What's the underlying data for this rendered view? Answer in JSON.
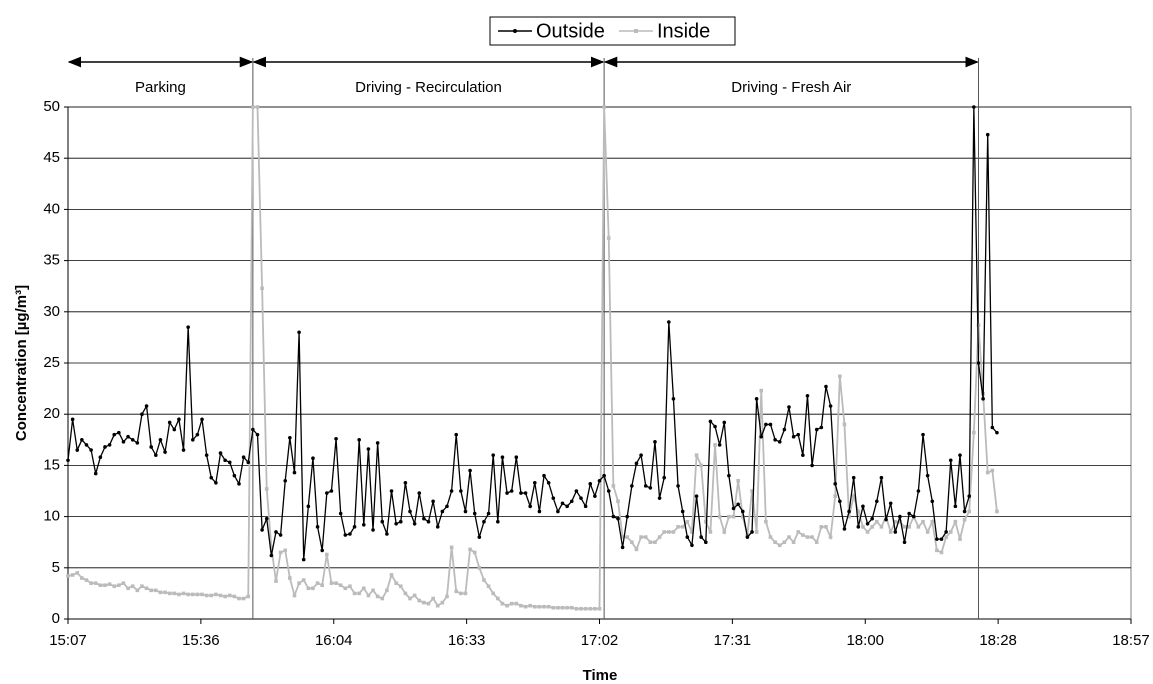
{
  "chart_data": {
    "type": "line",
    "legend": "top",
    "x_label": "Time",
    "y_label": "Concentration [µg/m³]",
    "xlim": [
      907,
      1137
    ],
    "xticks": [
      {
        "value": 907,
        "label": "15:07"
      },
      {
        "value": 935.75,
        "label": "15:36"
      },
      {
        "value": 964.5,
        "label": "16:04"
      },
      {
        "value": 993.25,
        "label": "16:33"
      },
      {
        "value": 1022,
        "label": "17:02"
      },
      {
        "value": 1050.75,
        "label": "17:31"
      },
      {
        "value": 1079.5,
        "label": "18:00"
      },
      {
        "value": 1108.25,
        "label": "18:28"
      },
      {
        "value": 1137,
        "label": "18:57"
      }
    ],
    "ylim": [
      0,
      50
    ],
    "yticks": [
      0,
      5,
      10,
      15,
      20,
      25,
      30,
      35,
      40,
      45,
      50
    ],
    "grid": true,
    "phases": [
      {
        "label": "Parking",
        "start": 907,
        "end": 947
      },
      {
        "label": "Driving - Recirculation",
        "start": 947,
        "end": 1023
      },
      {
        "label": "Driving - Fresh Air",
        "start": 1023,
        "end": 1104
      }
    ],
    "x": [
      907,
      908,
      909,
      910,
      911,
      912,
      913,
      914,
      915,
      916,
      917,
      918,
      919,
      920,
      921,
      922,
      923,
      924,
      925,
      926,
      927,
      928,
      929,
      930,
      931,
      932,
      933,
      934,
      935,
      936,
      937,
      938,
      939,
      940,
      941,
      942,
      943,
      944,
      945,
      946,
      947,
      948,
      949,
      950,
      951,
      952,
      953,
      954,
      955,
      956,
      957,
      958,
      959,
      960,
      961,
      962,
      963,
      964,
      965,
      966,
      967,
      968,
      969,
      970,
      971,
      972,
      973,
      974,
      975,
      976,
      977,
      978,
      979,
      980,
      981,
      982,
      983,
      984,
      985,
      986,
      987,
      988,
      989,
      990,
      991,
      992,
      993,
      994,
      995,
      996,
      997,
      998,
      999,
      1000,
      1001,
      1002,
      1003,
      1004,
      1005,
      1006,
      1007,
      1008,
      1009,
      1010,
      1011,
      1012,
      1013,
      1014,
      1015,
      1016,
      1017,
      1018,
      1019,
      1020,
      1021,
      1022,
      1023,
      1024,
      1025,
      1026,
      1027,
      1028,
      1029,
      1030,
      1031,
      1032,
      1033,
      1034,
      1035,
      1036,
      1037,
      1038,
      1039,
      1040,
      1041,
      1042,
      1043,
      1044,
      1045,
      1046,
      1047,
      1048,
      1049,
      1050,
      1051,
      1052,
      1053,
      1054,
      1055,
      1056,
      1057,
      1058,
      1059,
      1060,
      1061,
      1062,
      1063,
      1064,
      1065,
      1066,
      1067,
      1068,
      1069,
      1070,
      1071,
      1072,
      1073,
      1074,
      1075,
      1076,
      1077,
      1078,
      1079,
      1080,
      1081,
      1082,
      1083,
      1084,
      1085,
      1086,
      1087,
      1088,
      1089,
      1090,
      1091,
      1092,
      1093,
      1094,
      1095,
      1096,
      1097,
      1098,
      1099,
      1100,
      1101,
      1102,
      1103,
      1104,
      1105,
      1106,
      1107,
      1108
    ],
    "series": [
      {
        "name": "Outside",
        "color": "#000000",
        "marker": "circle",
        "values": [
          15.5,
          19.5,
          16.5,
          17.5,
          17,
          16.5,
          14.2,
          15.8,
          16.8,
          17,
          18,
          18.2,
          17.3,
          17.8,
          17.5,
          17.2,
          20,
          20.8,
          16.8,
          16,
          17.5,
          16.3,
          19.2,
          18.5,
          19.5,
          16.5,
          28.5,
          17.5,
          18,
          19.5,
          16,
          13.8,
          13.3,
          16.2,
          15.5,
          15.3,
          14,
          13.2,
          15.8,
          15.3,
          18.5,
          18,
          8.7,
          9.8,
          6.2,
          8.5,
          8.2,
          13.5,
          17.7,
          14.3,
          28,
          5.8,
          11,
          15.7,
          9,
          6.7,
          12.3,
          12.5,
          17.6,
          10.3,
          8.2,
          8.3,
          9,
          17.5,
          9.2,
          16.6,
          8.7,
          17.2,
          9.5,
          8.3,
          12.5,
          9.3,
          9.5,
          13.3,
          10.5,
          9.3,
          12.3,
          9.8,
          9.5,
          11.5,
          9,
          10.5,
          11,
          12.5,
          18,
          12.5,
          10.5,
          14.5,
          10.3,
          8,
          9.5,
          10.3,
          16,
          9.5,
          15.8,
          12.3,
          12.5,
          15.8,
          12.3,
          12.3,
          11,
          13.3,
          10.5,
          14,
          13.3,
          11.8,
          10.5,
          11.3,
          11,
          11.5,
          12.5,
          11.8,
          11,
          13.2,
          12,
          13.5,
          14,
          12.5,
          10,
          9.8,
          7,
          10,
          13,
          15.2,
          16,
          13,
          12.8,
          17.3,
          11.8,
          13.8,
          29,
          21.5,
          13,
          10.5,
          8,
          7.2,
          12,
          8,
          7.5,
          19.3,
          18.8,
          17,
          19.2,
          14,
          10.8,
          11.2,
          10.5,
          8,
          8.5,
          21.5,
          17.8,
          19,
          19,
          17.5,
          17.3,
          18.5,
          20.7,
          17.8,
          18,
          16,
          21.8,
          15,
          18.5,
          18.7,
          22.7,
          20.8,
          13.2,
          11.5,
          8.8,
          10.5,
          13.8,
          9,
          11,
          9.3,
          9.8,
          11.5,
          13.8,
          9.7,
          11.3,
          8.5,
          10,
          7.5,
          10.3,
          10,
          12.5,
          18,
          14,
          11.5,
          7.8,
          7.8,
          8.5,
          15.5,
          11,
          16,
          10.5,
          12,
          50,
          25,
          21.5,
          47.3,
          18.7,
          18.2
        ]
      },
      {
        "name": "Inside",
        "color": "#bbbbbb",
        "marker": "square",
        "values": [
          4.2,
          4.3,
          4.5,
          4,
          3.8,
          3.5,
          3.5,
          3.3,
          3.3,
          3.4,
          3.2,
          3.3,
          3.5,
          3,
          3.2,
          2.8,
          3.2,
          3,
          2.8,
          2.8,
          2.6,
          2.6,
          2.5,
          2.5,
          2.4,
          2.5,
          2.4,
          2.4,
          2.4,
          2.4,
          2.3,
          2.3,
          2.4,
          2.3,
          2.2,
          2.3,
          2.2,
          2,
          2,
          2.2,
          50,
          50,
          32.3,
          12.7,
          7,
          3.7,
          6.5,
          6.7,
          4,
          2.3,
          3.5,
          3.8,
          3,
          3,
          3.5,
          3.3,
          6.3,
          3.5,
          3.5,
          3.3,
          3,
          3.2,
          2.5,
          2.5,
          3,
          2.3,
          2.8,
          2.2,
          2,
          2.8,
          4.3,
          3.5,
          3.2,
          2.5,
          2,
          2.3,
          1.8,
          1.6,
          1.5,
          2,
          1.3,
          1.6,
          2.2,
          7,
          2.7,
          2.5,
          2.5,
          6.8,
          6.5,
          5,
          3.8,
          3.2,
          2.5,
          2,
          1.5,
          1.3,
          1.5,
          1.5,
          1.3,
          1.2,
          1.3,
          1.2,
          1.2,
          1.2,
          1.2,
          1.1,
          1.1,
          1.1,
          1.1,
          1.1,
          1,
          1,
          1,
          1,
          1,
          1,
          50,
          37.2,
          13,
          11.5,
          8,
          8,
          7.5,
          6.8,
          8,
          8,
          7.5,
          7.5,
          8,
          8.5,
          8.5,
          8.5,
          9,
          9,
          9.5,
          8.5,
          16,
          15,
          9.5,
          8.5,
          17,
          10,
          8.5,
          10,
          10,
          13.5,
          10,
          8.2,
          12.5,
          8.5,
          22.3,
          9.5,
          8,
          7.5,
          7.2,
          7.5,
          8,
          7.5,
          8.5,
          8.2,
          8,
          8,
          7.5,
          9,
          9,
          8,
          12,
          23.7,
          19,
          10,
          12,
          10.5,
          9,
          8.5,
          9,
          9.5,
          9,
          10,
          8.5,
          9.5,
          9.5,
          9,
          9,
          10,
          9,
          9.5,
          8.5,
          9.5,
          6.7,
          6.5,
          8,
          8.5,
          9.5,
          7.8,
          9.7,
          10.5,
          18.2,
          28.7,
          22,
          14.3,
          14.5,
          10.5
        ]
      }
    ]
  }
}
